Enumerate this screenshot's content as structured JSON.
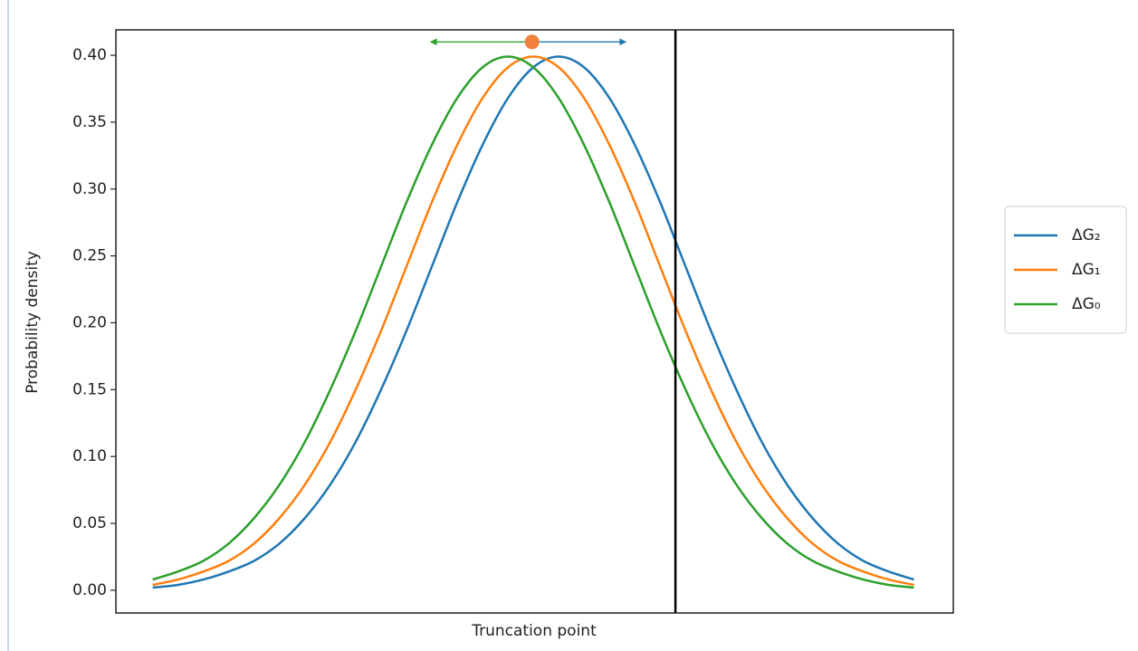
{
  "chart_data": {
    "type": "line",
    "xlabel": "Truncation point",
    "ylabel": "Probability density",
    "x": [
      -3.0,
      -2.8,
      -2.6,
      -2.4,
      -2.2,
      -2.0,
      -1.8,
      -1.6,
      -1.4,
      -1.2,
      -1.0,
      -0.8,
      -0.6,
      -0.4,
      -0.2,
      0.0,
      0.2,
      0.4,
      0.6,
      0.8,
      1.0,
      1.2,
      1.4,
      1.6,
      1.8,
      2.0,
      2.2,
      2.4,
      2.6,
      2.8,
      3.0
    ],
    "series": [
      {
        "name": "ΔG₂",
        "color": "#1f77b4",
        "values": [
          0.002,
          0.004,
          0.008,
          0.014,
          0.022,
          0.035,
          0.054,
          0.079,
          0.111,
          0.15,
          0.194,
          0.242,
          0.29,
          0.333,
          0.368,
          0.391,
          0.399,
          0.391,
          0.368,
          0.333,
          0.29,
          0.242,
          0.194,
          0.15,
          0.111,
          0.079,
          0.054,
          0.035,
          0.022,
          0.014,
          0.008
        ]
      },
      {
        "name": "ΔG₁",
        "color": "#ff7f0e",
        "values": [
          0.004,
          0.008,
          0.014,
          0.022,
          0.035,
          0.054,
          0.079,
          0.111,
          0.15,
          0.194,
          0.242,
          0.29,
          0.333,
          0.368,
          0.391,
          0.399,
          0.391,
          0.368,
          0.333,
          0.29,
          0.242,
          0.194,
          0.15,
          0.111,
          0.079,
          0.054,
          0.035,
          0.022,
          0.014,
          0.008,
          0.004
        ]
      },
      {
        "name": "ΔG₀",
        "color": "#2ca02c",
        "values": [
          0.008,
          0.014,
          0.022,
          0.035,
          0.054,
          0.079,
          0.111,
          0.15,
          0.194,
          0.242,
          0.29,
          0.333,
          0.368,
          0.391,
          0.399,
          0.391,
          0.368,
          0.333,
          0.29,
          0.242,
          0.194,
          0.15,
          0.111,
          0.079,
          0.054,
          0.035,
          0.022,
          0.014,
          0.008,
          0.004,
          0.002
        ]
      }
    ],
    "xlim": [
      -3.29,
      3.31
    ],
    "ylim": [
      -0.017,
      0.419
    ],
    "yticks": [
      {
        "value": 0,
        "label": "0.00"
      },
      {
        "value": 0.05,
        "label": "0.05"
      },
      {
        "value": 0.1,
        "label": "0.10"
      },
      {
        "value": 0.15,
        "label": "0.15"
      },
      {
        "value": 0.2,
        "label": "0.20"
      },
      {
        "value": 0.25,
        "label": "0.25"
      },
      {
        "value": 0.3,
        "label": "0.30"
      },
      {
        "value": 0.35,
        "label": "0.35"
      },
      {
        "value": 0.4,
        "label": "0.40"
      }
    ],
    "grid": false,
    "legend": "outside-right",
    "vline": {
      "x": 1.12,
      "color": "#000000"
    },
    "marker": {
      "x": -0.01,
      "y": 0.41,
      "color": "#f0803c"
    },
    "arrows": [
      {
        "from": -0.01,
        "to": -0.81,
        "y": 0.41,
        "color": "#2ca02c"
      },
      {
        "from": -0.01,
        "to": 0.73,
        "y": 0.41,
        "color": "#1f77b4"
      }
    ]
  }
}
